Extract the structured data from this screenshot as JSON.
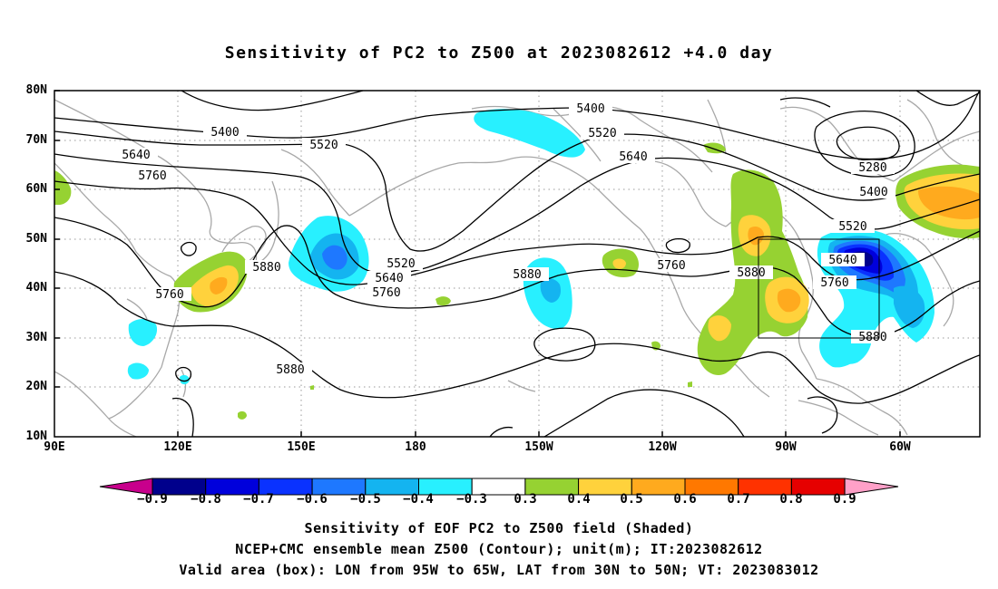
{
  "title": "Sensitivity of PC2 to Z500 at 2023082612 +4.0 day",
  "axes": {
    "y_labels": [
      "80N",
      "70N",
      "60N",
      "50N",
      "40N",
      "30N",
      "20N",
      "10N"
    ],
    "x_labels": [
      "90E",
      "120E",
      "150E",
      "180",
      "150W",
      "120W",
      "90W",
      "60W"
    ]
  },
  "contour_labels": {
    "c5400a": "5400",
    "c5400b": "5400",
    "c5400c": "5400",
    "c5520a": "5520",
    "c5520b": "5520",
    "c5520c": "5520",
    "c5520d": "5520",
    "c5640a": "5640",
    "c5640b": "5640",
    "c5640c": "5640",
    "c5640d": "5640",
    "c5760a": "5760",
    "c5760b": "5760",
    "c5760c": "5760",
    "c5760d": "5760",
    "c5760e": "5760",
    "c5880a": "5880",
    "c5880b": "5880",
    "c5880c": "5880",
    "c5880d": "5880",
    "c5880e": "5880",
    "c5280": "5280"
  },
  "colorbar": {
    "labels": [
      "−0.9",
      "−0.8",
      "−0.7",
      "−0.6",
      "−0.5",
      "−0.4",
      "−0.3",
      "0.3",
      "0.4",
      "0.5",
      "0.6",
      "0.7",
      "0.8",
      "0.9"
    ],
    "colors": [
      "#00008c",
      "#0000dc",
      "#0a32ff",
      "#1e78ff",
      "#14b4f0",
      "#28f0ff",
      "#ffffff",
      "#96d232",
      "#ffd23c",
      "#ffaa1e",
      "#ff7800",
      "#ff3200",
      "#e60000"
    ],
    "low_extend_color": "#c8008c",
    "high_extend_color": "#ffa0c8"
  },
  "captions": {
    "line1": "Sensitivity of EOF PC2 to Z500 field (Shaded)",
    "line2": "NCEP+CMC ensemble mean Z500 (Contour); unit(m); IT:2023082612",
    "line3": "Valid area (box): LON from 95W to 65W, LAT from 30N to 50N; VT: 2023083012"
  },
  "map_data": {
    "lon_range": [
      "90E",
      "30W"
    ],
    "lat_range": [
      "10N",
      "80N"
    ],
    "valid_box": {
      "lon": [
        "95W",
        "65W"
      ],
      "lat": [
        "30N",
        "50N"
      ]
    },
    "contour_interval_m": 120
  }
}
